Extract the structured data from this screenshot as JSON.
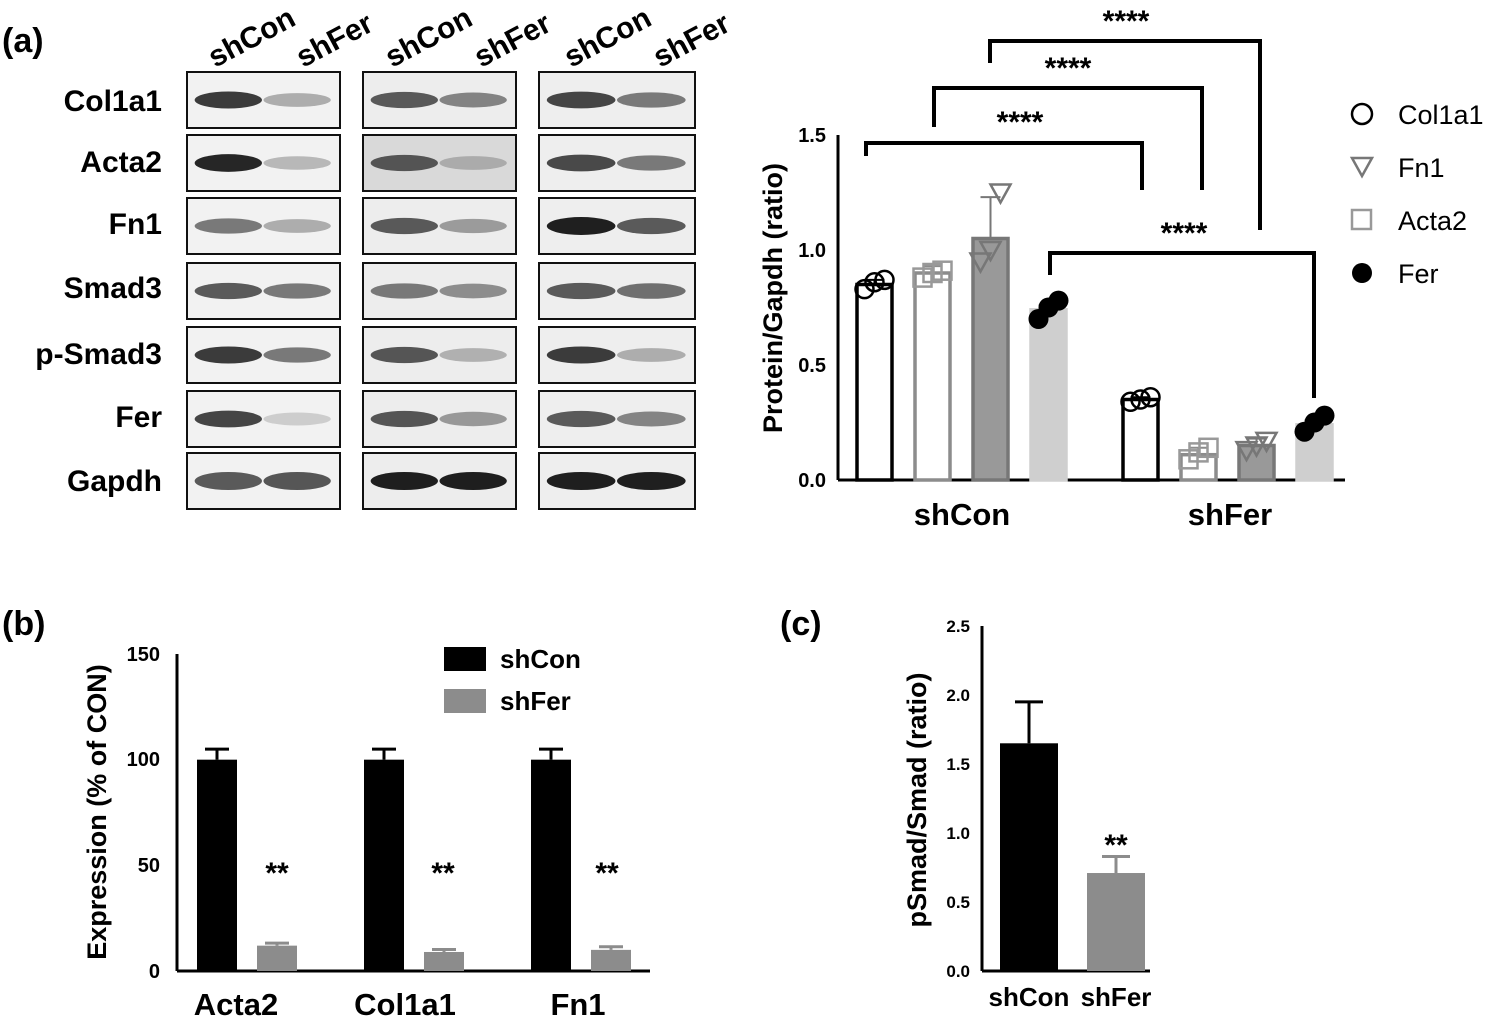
{
  "figure": {
    "panel_labels": [
      "(a)",
      "(b)",
      "(c)"
    ]
  },
  "blots": {
    "lane_labels": [
      "shCon",
      "shFer",
      "shCon",
      "shFer",
      "shCon",
      "shFer"
    ],
    "rows": [
      "Col1a1",
      "Acta2",
      "Fn1",
      "Smad3",
      "p-Smad3",
      "Fer",
      "Gapdh"
    ],
    "band_intensity": [
      [
        [
          0.85,
          0.3
        ],
        [
          0.7,
          0.5
        ],
        [
          0.8,
          0.55
        ]
      ],
      [
        [
          0.95,
          0.25
        ],
        [
          0.72,
          0.3
        ],
        [
          0.78,
          0.55
        ]
      ],
      [
        [
          0.55,
          0.3
        ],
        [
          0.7,
          0.38
        ],
        [
          0.98,
          0.7
        ]
      ],
      [
        [
          0.7,
          0.55
        ],
        [
          0.55,
          0.45
        ],
        [
          0.7,
          0.6
        ]
      ],
      [
        [
          0.85,
          0.55
        ],
        [
          0.72,
          0.28
        ],
        [
          0.85,
          0.3
        ]
      ],
      [
        [
          0.8,
          0.15
        ],
        [
          0.72,
          0.4
        ],
        [
          0.7,
          0.5
        ]
      ],
      [
        [
          0.7,
          0.72
        ],
        [
          0.98,
          0.98
        ],
        [
          0.98,
          0.98
        ]
      ]
    ]
  },
  "chart_data": [
    {
      "type": "bar",
      "panel": "(a)",
      "categories": [
        "shCon",
        "shFer"
      ],
      "ylabel": "Protein/Gapdh (ratio)",
      "ylim": [
        0,
        1.5
      ],
      "yticks": [
        "0.0",
        "0.5",
        "1.0",
        "1.5"
      ],
      "legend": [
        "Col1a1",
        "Fn1",
        "Acta2",
        "Fer"
      ],
      "legend_position": "right",
      "series": [
        {
          "name": "Col1a1",
          "values": [
            0.85,
            0.35
          ],
          "points": [
            [
              0.83,
              0.86,
              0.87
            ],
            [
              0.34,
              0.35,
              0.36
            ]
          ],
          "error": [
            0.02,
            0.01
          ],
          "fill": "#ffffff",
          "stroke": "#000000",
          "marker": "circle-open"
        },
        {
          "name": "Fn1",
          "values": [
            0.9,
            0.11
          ],
          "points": [
            [
              0.88,
              0.9,
              0.91
            ],
            [
              0.09,
              0.12,
              0.14
            ]
          ],
          "error": [
            0.03,
            0.03
          ],
          "fill": "#ffffff",
          "stroke": "#8c8c8c",
          "marker": "square-open"
        },
        {
          "name": "Acta2",
          "values": [
            1.05,
            0.15
          ],
          "points": [
            [
              0.95,
              1.0,
              1.25
            ],
            [
              0.13,
              0.15,
              0.17
            ]
          ],
          "error": [
            0.18,
            0.03
          ],
          "fill": "#999999",
          "stroke": "#777777",
          "marker": "triangle-open"
        },
        {
          "name": "Fer",
          "values": [
            0.74,
            0.24
          ],
          "points": [
            [
              0.7,
              0.75,
              0.78
            ],
            [
              0.21,
              0.25,
              0.28
            ]
          ],
          "error": [
            0.02,
            0.02
          ],
          "fill": "#cfcfcf",
          "stroke": "#cfcfcf",
          "marker": "circle-filled"
        }
      ],
      "significance": [
        "****",
        "****",
        "****",
        "****"
      ]
    },
    {
      "type": "bar",
      "panel": "(b)",
      "categories": [
        "Acta2",
        "Col1a1",
        "Fn1"
      ],
      "ylabel": "Expression (% of CON)",
      "ylim": [
        0,
        150
      ],
      "yticks": [
        "0",
        "50",
        "100",
        "150"
      ],
      "legend_position": "top-right",
      "series": [
        {
          "name": "shCon",
          "values": [
            100,
            100,
            100
          ],
          "error": [
            5,
            5,
            5
          ],
          "color": "#000000"
        },
        {
          "name": "shFer",
          "values": [
            12,
            9,
            10
          ],
          "error": [
            1.2,
            1.2,
            1.5
          ],
          "color": "#8c8c8c"
        }
      ],
      "annotations": [
        "**",
        "**",
        "**"
      ]
    },
    {
      "type": "bar",
      "panel": "(c)",
      "categories": [
        "shCon",
        "shFer"
      ],
      "ylabel": "pSmad/Smad (ratio)",
      "ylim": [
        0,
        2.5
      ],
      "yticks": [
        "0.0",
        "0.5",
        "1.0",
        "1.5",
        "2.0",
        "2.5"
      ],
      "values": [
        1.65,
        0.71
      ],
      "error": [
        0.3,
        0.12
      ],
      "colors": [
        "#000000",
        "#8c8c8c"
      ],
      "annotations": [
        "",
        "**"
      ]
    }
  ]
}
